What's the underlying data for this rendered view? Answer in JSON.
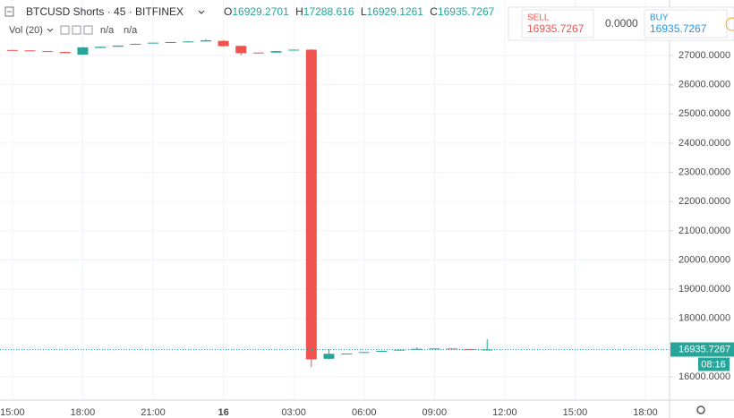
{
  "chart_data": {
    "type": "candlestick",
    "title": "BTCUSD Shorts · 45 · BITFINEX",
    "ohlc_letters": [
      "O",
      "H",
      "L",
      "C"
    ],
    "indicator": "Vol (20)",
    "indicator_values": [
      "n/a",
      "n/a"
    ],
    "x": [
      15,
      15.75,
      16.5,
      17.25,
      18,
      18.75,
      19.5,
      20.25,
      21,
      21.75,
      22.5,
      23.25,
      24,
      24.75,
      25.5,
      26.25,
      27,
      27.75,
      28.5,
      29.25,
      30,
      30.75,
      31.5,
      32.25,
      33,
      33.75,
      34.5,
      35.25
    ],
    "open": [
      27190,
      27175,
      27150,
      27120,
      27030,
      27260,
      27300,
      27370,
      27420,
      27440,
      27450,
      27480,
      27500,
      27330,
      27100,
      27100,
      27170,
      27200,
      16620,
      16780,
      16820,
      16860,
      16900,
      16930,
      16950,
      16970,
      16950,
      16929.2701
    ],
    "high": [
      27195,
      27180,
      27155,
      27125,
      27290,
      27305,
      27345,
      27405,
      27445,
      27465,
      27485,
      27560,
      27530,
      27335,
      27105,
      27155,
      27205,
      27220,
      16950,
      16805,
      16855,
      16895,
      16935,
      17000,
      16975,
      16975,
      16955,
      17288.616
    ],
    "low": [
      27170,
      27155,
      27135,
      27075,
      27020,
      27255,
      27295,
      27365,
      27415,
      27435,
      27445,
      27475,
      27300,
      27010,
      27085,
      27095,
      27165,
      16330,
      16600,
      16775,
      16815,
      16855,
      16895,
      16925,
      16945,
      16945,
      16925,
      16929.1261
    ],
    "close": [
      27175,
      27160,
      27140,
      27080,
      27280,
      27300,
      27340,
      27400,
      27440,
      27460,
      27480,
      27520,
      27320,
      27080,
      27090,
      27150,
      27200,
      16600,
      16790,
      16800,
      16850,
      16890,
      16930,
      16960,
      16970,
      16950,
      16930,
      16935.7267
    ],
    "up_color": "#26a69a",
    "down_color": "#ef5350",
    "xlim": [
      14.47,
      43.03
    ],
    "xticks": [
      {
        "value": 15,
        "label": "15:00"
      },
      {
        "value": 18,
        "label": "18:00"
      },
      {
        "value": 21,
        "label": "21:00"
      },
      {
        "value": 24,
        "label": "16"
      },
      {
        "value": 27,
        "label": "03:00"
      },
      {
        "value": 30,
        "label": "06:00"
      },
      {
        "value": 33,
        "label": "09:00"
      },
      {
        "value": 36,
        "label": "12:00"
      },
      {
        "value": 39,
        "label": "15:00"
      },
      {
        "value": 42,
        "label": "18:00"
      }
    ],
    "ylim": [
      15205,
      28900
    ],
    "yticks": [
      {
        "value": 16000,
        "label": "16000.0000"
      },
      {
        "value": 17000,
        "label": "17000.0000"
      },
      {
        "value": 18000,
        "label": "18000.0000"
      },
      {
        "value": 19000,
        "label": "19000.0000"
      },
      {
        "value": 20000,
        "label": "20000.0000"
      },
      {
        "value": 21000,
        "label": "21000.0000"
      },
      {
        "value": 22000,
        "label": "22000.0000"
      },
      {
        "value": 23000,
        "label": "23000.0000"
      },
      {
        "value": 24000,
        "label": "24000.0000"
      },
      {
        "value": 25000,
        "label": "25000.0000"
      },
      {
        "value": 26000,
        "label": "26000.0000"
      },
      {
        "value": 27000,
        "label": "27000.0000"
      }
    ],
    "grid": true,
    "countdown": "08:16"
  },
  "trade_panel": {
    "sell": "SELL",
    "spread": "0.0000",
    "buy": "BUY"
  }
}
